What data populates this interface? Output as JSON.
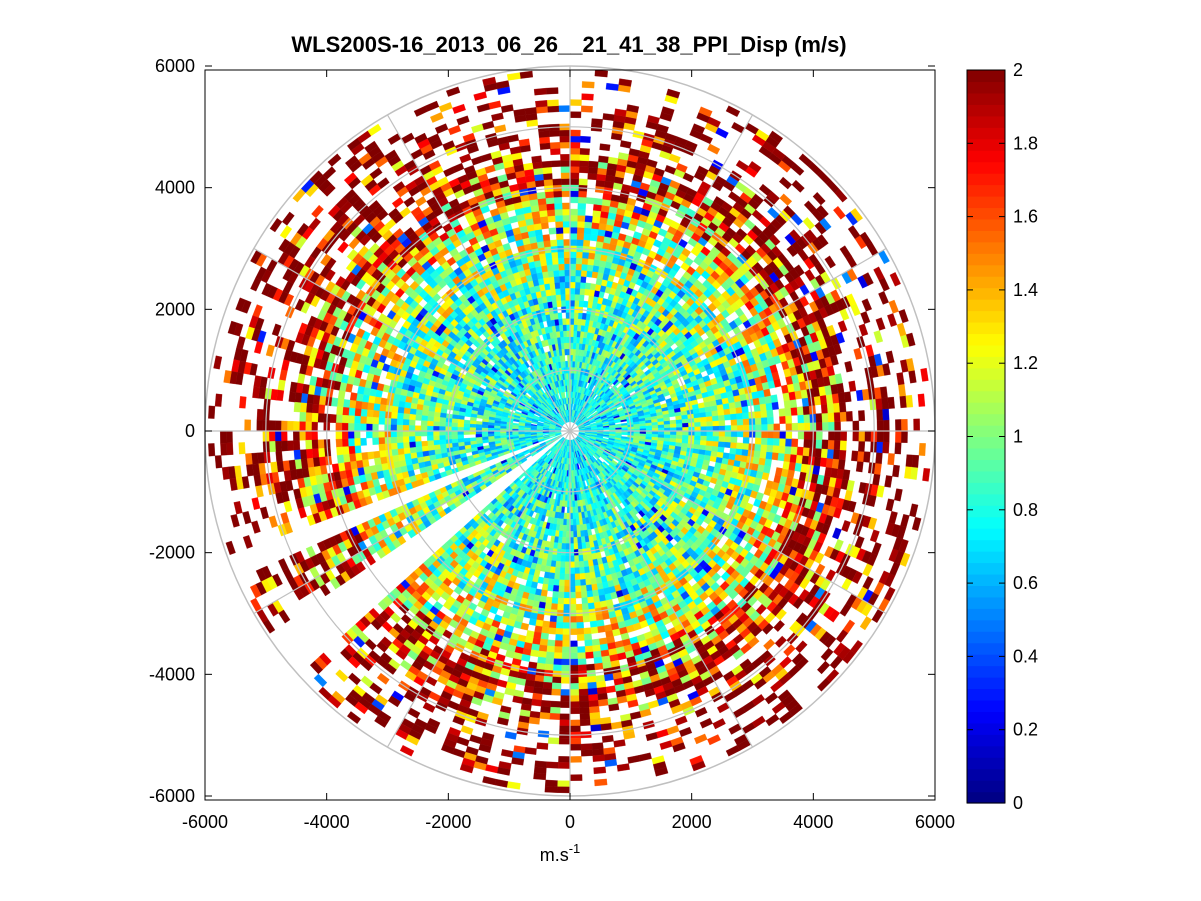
{
  "chart_data": {
    "type": "heatmap",
    "subtype": "polar-ppi",
    "title": "WLS200S-16_2013_06_26__21_41_38_PPI_Disp (m/s)",
    "xlabel": "m.s",
    "xlabel_superscript": "-1",
    "ylabel": "",
    "xlim": [
      -6000,
      6000
    ],
    "ylim": [
      -6000,
      6000
    ],
    "xticks": [
      -6000,
      -4000,
      -2000,
      0,
      2000,
      4000,
      6000
    ],
    "yticks": [
      6000,
      4000,
      2000,
      0,
      -2000,
      -4000,
      -6000
    ],
    "xtick_labels": [
      "-6000",
      "-4000",
      "-2000",
      "0",
      "2000",
      "4000",
      "6000"
    ],
    "ytick_labels": [
      "6000",
      "4000",
      "2000",
      "0",
      "-2000",
      "-4000",
      "-6000"
    ],
    "polar_grid": {
      "ring_radii": [
        1000,
        2000,
        3000,
        4000,
        5000,
        6000
      ],
      "spoke_angles_deg": [
        0,
        30,
        60,
        90,
        120,
        150,
        180,
        210,
        240,
        270,
        300,
        330
      ]
    },
    "range_max": 5900,
    "colorbar": {
      "colormap": "jet",
      "clim": [
        0,
        2
      ],
      "ticks": [
        0,
        0.2,
        0.4,
        0.6,
        0.8,
        1,
        1.2,
        1.4,
        1.6,
        1.8,
        2
      ],
      "tick_labels": [
        "0",
        "0.2",
        "0.4",
        "0.6",
        "0.8",
        "1",
        "1.2",
        "1.4",
        "1.6",
        "1.8",
        "2"
      ]
    },
    "field_profile": {
      "description_of_displayed_values": "velocity dispersion by range ring",
      "range_m": [
        0,
        1000,
        2000,
        3000,
        4000,
        5000,
        5900
      ],
      "typical_value": [
        0.75,
        0.8,
        0.9,
        1.05,
        1.4,
        1.8,
        1.95
      ]
    },
    "sector_gaps_deg": [
      [
        213,
        220
      ],
      [
        200,
        202
      ]
    ],
    "colors": {
      "axes": "#000000",
      "grid": "#c0c0c0",
      "background": "#ffffff"
    }
  }
}
